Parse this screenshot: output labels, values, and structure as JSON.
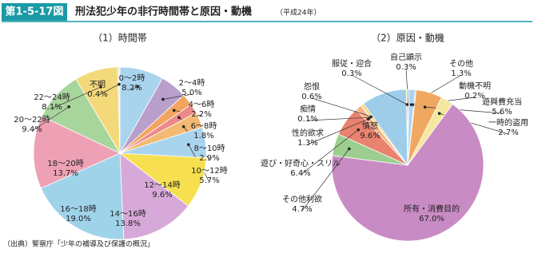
{
  "figure_number": "第1-5-17図",
  "title": "刑法犯少年の非行時間帯と原因・動機",
  "title_note": "（平成24年）",
  "source": "（出典）警察庁「少年の補導及び保護の概況」",
  "chart_data": [
    {
      "type": "pie",
      "title": "（1）時間帯",
      "categories": [
        "0～2時",
        "2～4時",
        "4～6時",
        "6～8時",
        "8～10時",
        "10～12時",
        "12～14時",
        "14～16時",
        "16～18時",
        "18～20時",
        "20～22時",
        "22～24時",
        "不明"
      ],
      "values": [
        8.2,
        5.0,
        2.2,
        1.8,
        2.9,
        5.7,
        9.6,
        13.8,
        19.0,
        13.7,
        9.4,
        8.1,
        0.4
      ],
      "value_labels": [
        "8.2%",
        "5.0%",
        "2.2%",
        "1.8%",
        "2.9%",
        "5.7%",
        "9.6%",
        "13.8%",
        "19.0%",
        "13.7%",
        "9.4%",
        "8.1%",
        "0.4%"
      ],
      "colors": [
        "#a9d4ee",
        "#b9a0cc",
        "#f3a55f",
        "#ec8a8a",
        "#f3b872",
        "#a9d4ee",
        "#f6e04f",
        "#d7a9d8",
        "#9fd3ea",
        "#eea0b4",
        "#a8d59c",
        "#f3d97a",
        "#e8e8e8"
      ]
    },
    {
      "type": "pie",
      "title": "（2）原因・動機",
      "categories": [
        "自己顕示",
        "その他",
        "動機不明",
        "遊興費充当",
        "一時的盗用",
        "所有・消費目的",
        "その他利欲",
        "遊び・好奇心・スリル",
        "性的欲求",
        "痴情",
        "怨恨",
        "憤怒",
        "服従・迎合"
      ],
      "values": [
        0.3,
        1.3,
        0.2,
        5.6,
        2.7,
        67.0,
        4.7,
        6.4,
        1.3,
        0.1,
        0.6,
        9.6,
        0.3
      ],
      "value_labels": [
        "0.3%",
        "1.3%",
        "0.2%",
        "5.6%",
        "2.7%",
        "67.0%",
        "4.7%",
        "6.4%",
        "1.3%",
        "0.1%",
        "0.6%",
        "9.6%",
        "0.3%"
      ],
      "colors": [
        "#5b9bd5",
        "#a9d4ee",
        "#ec8a8a",
        "#f0a860",
        "#f5e7a0",
        "#c98bc4",
        "#9ccf8f",
        "#e9836f",
        "#f4b183",
        "#c9a0dc",
        "#f7d56c",
        "#9dcde9",
        "#f2d64f"
      ]
    }
  ]
}
